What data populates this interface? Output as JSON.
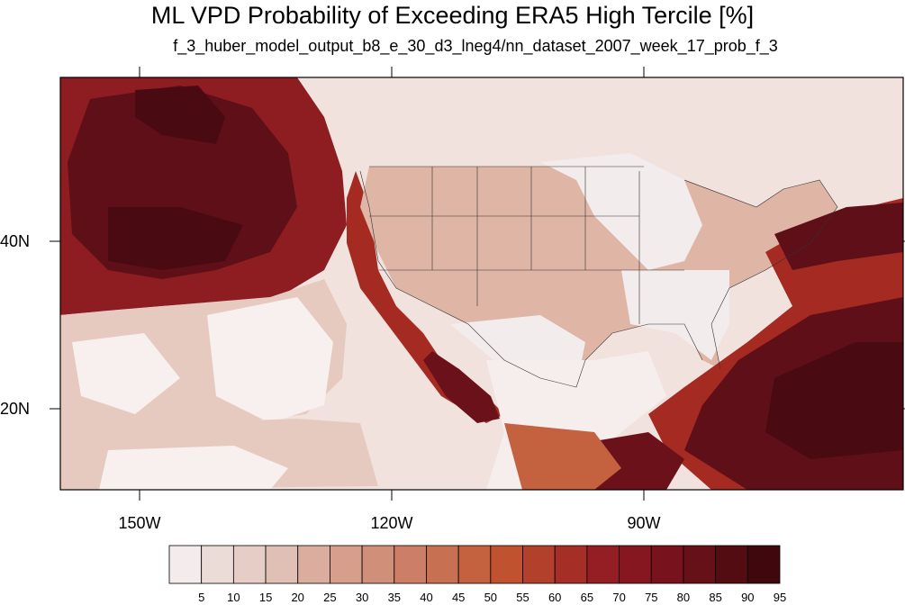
{
  "title": "ML VPD Probability of Exceeding ERA5 High Tercile [%]",
  "subtitle": "f_3_huber_model_output_b8_e_30_d3_lneg4/nn_dataset_2007_week_17_prob_f_3",
  "map": {
    "lon_labels": [
      "150W",
      "120W",
      "90W"
    ],
    "lat_labels": [
      "40N",
      "20N"
    ],
    "colors": {
      "land_light": "#f3ecec",
      "land_tan": "#dcae9d",
      "ocean_deep": "#5e0f18",
      "ocean_mid": "#a42a22",
      "ocean_light": "#e9cdc4",
      "ocean_pale": "#f6eeec",
      "border": "#333333"
    }
  },
  "colorbar": {
    "labels": [
      "5",
      "10",
      "15",
      "20",
      "25",
      "30",
      "35",
      "40",
      "45",
      "50",
      "55",
      "60",
      "65",
      "70",
      "75",
      "80",
      "85",
      "90",
      "95"
    ],
    "colors": [
      "#f4ecec",
      "#ecdcd8",
      "#e6cec7",
      "#e0bfb4",
      "#dbad9f",
      "#d69e8b",
      "#d08f78",
      "#cc7f66",
      "#c87052",
      "#c4613f",
      "#c1522f",
      "#b2402b",
      "#a52f27",
      "#951e24",
      "#86161f",
      "#78121c",
      "#661018",
      "#540c13",
      "#40070d"
    ]
  }
}
